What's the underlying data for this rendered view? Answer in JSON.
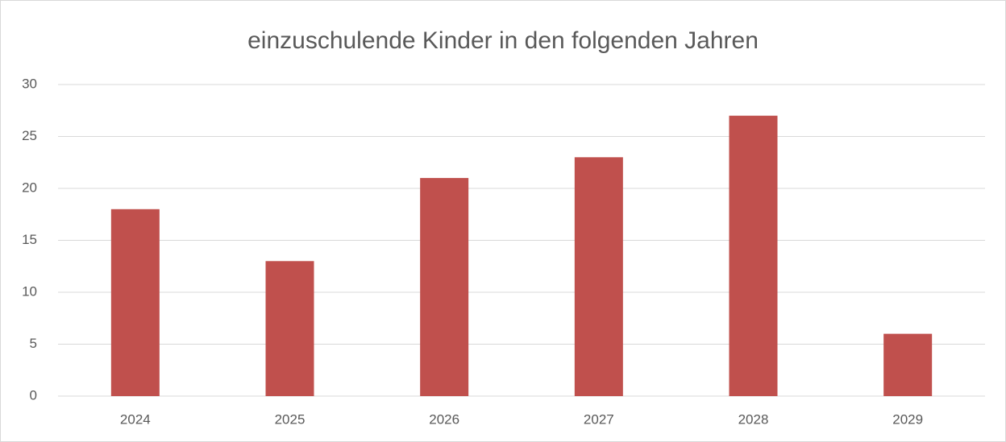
{
  "chart_data": {
    "type": "bar",
    "title": "einzuschulende Kinder in den folgenden Jahren",
    "categories": [
      "2024",
      "2025",
      "2026",
      "2027",
      "2028",
      "2029"
    ],
    "values": [
      18,
      13,
      21,
      23,
      27,
      6
    ],
    "color": "#c0504d",
    "ylim": [
      0,
      30
    ],
    "yticks": [
      0,
      5,
      10,
      15,
      20,
      25,
      30
    ],
    "grid": true
  }
}
